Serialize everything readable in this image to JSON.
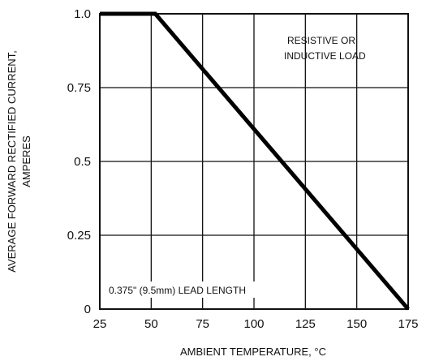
{
  "chart_data": {
    "type": "line",
    "title": "",
    "xlabel": "AMBIENT TEMPERATURE, °C",
    "ylabel_lines": [
      "AVERAGE FORWARD RECTIFIED CURRENT,",
      "AMPERES"
    ],
    "x_ticks": [
      {
        "value": 25,
        "label": "25"
      },
      {
        "value": 50,
        "label": "50"
      },
      {
        "value": 75,
        "label": "75"
      },
      {
        "value": 100,
        "label": "100"
      },
      {
        "value": 125,
        "label": "125"
      },
      {
        "value": 150,
        "label": "150"
      },
      {
        "value": 175,
        "label": "175"
      }
    ],
    "y_ticks": [
      {
        "value": 0,
        "label": "0"
      },
      {
        "value": 0.25,
        "label": "0.25"
      },
      {
        "value": 0.5,
        "label": "0.5"
      },
      {
        "value": 0.75,
        "label": "0.75"
      },
      {
        "value": 1.0,
        "label": "1.0"
      }
    ],
    "xlim": [
      25,
      175
    ],
    "ylim": [
      0,
      1.0
    ],
    "grid": true,
    "series": [
      {
        "x": [
          25,
          52,
          175
        ],
        "y": [
          1.0,
          1.0,
          0
        ]
      }
    ],
    "annotations": {
      "load": [
        "RESISTIVE OR",
        "INDUCTIVE LOAD"
      ],
      "lead": "0.375\" (9.5mm) LEAD LENGTH"
    }
  }
}
